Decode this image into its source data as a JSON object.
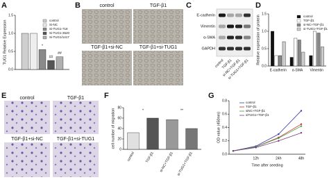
{
  "panel_letters": [
    "A",
    "B",
    "C",
    "D",
    "E",
    "F",
    "G"
  ],
  "micrographs": {
    "B": [
      "control",
      "TGF-β1",
      "TGF-β1+si-NC",
      "TGF-β1+si-TUG1"
    ],
    "E": [
      "control",
      "TGF-β1",
      "TGF-β1+si-NC",
      "TGF-β1+si-TUG1"
    ]
  },
  "western_blot": {
    "proteins": [
      "E-cadherin",
      "Vimentin",
      "α-SMA",
      "GAPDH"
    ],
    "lanes": [
      "control",
      "TGF-β1",
      "si-NC+TGF-β1",
      "si-TUG1+TGF-β1"
    ]
  },
  "chart_data": [
    {
      "type": "bar",
      "y_label": "TUG1 Relative Expression",
      "categories": [
        null
      ],
      "series": [
        {
          "name": "control",
          "color": "#cfcfcf",
          "values": [
            1.0
          ]
        },
        {
          "name": "Si-NC",
          "color": "#eeeeee",
          "values": [
            1.0
          ]
        },
        {
          "name": "Si-TUG1-718",
          "color": "#8a8a8a",
          "values": [
            0.55
          ]
        },
        {
          "name": "Si-TUG1-3520",
          "color": "#555555",
          "values": [
            0.25
          ]
        },
        {
          "name": "Si-TUG1/1417",
          "color": "#b0b0b0",
          "values": [
            0.35
          ]
        }
      ],
      "annotations": [
        "*",
        "##",
        "##"
      ],
      "ylim": [
        0,
        1.5
      ],
      "yticks": [
        {
          "value": 0,
          "label": "0.0"
        },
        0.5,
        {
          "value": 1,
          "label": "1.0"
        },
        1.5
      ]
    },
    {
      "type": "bar",
      "y_label": "Relative expression of protein",
      "categories": [
        "E-cadherin",
        "α-SMA",
        "Vimentin"
      ],
      "series": [
        {
          "name": "control",
          "color": "#111111",
          "values": [
            1.0,
            0.25,
            0.3
          ]
        },
        {
          "name": "TGF-β1",
          "color": "#ffffff",
          "values": [
            0.3,
            0.8,
            1.0
          ]
        },
        {
          "name": "si-NC+TGF-β1",
          "color": "#888888",
          "values": [
            0.3,
            0.75,
            0.95
          ]
        },
        {
          "name": "si-TUG1+TGF-β1",
          "color": "#cccccc",
          "values": [
            0.7,
            0.4,
            0.55
          ]
        }
      ],
      "ylim": [
        0,
        1.5
      ],
      "yticks": [
        {
          "value": 0,
          "label": "0.0"
        },
        0.5,
        {
          "value": 1,
          "label": "1.0"
        },
        1.5
      ]
    },
    {
      "type": "bar",
      "y_label": "cell number of migration",
      "categories": [
        "control",
        "TGF-β1",
        "si-NC+TGF-β1",
        "si-TUG1+TGF-β1"
      ],
      "values": [
        32,
        60,
        57,
        40
      ],
      "colors": [
        "#e0e0e0",
        "#555555",
        "#999999",
        "#777777"
      ],
      "annotations": [
        "*",
        "**"
      ],
      "ylim": [
        0,
        80
      ],
      "yticks": [
        0,
        20,
        40,
        60,
        80
      ]
    },
    {
      "type": "line",
      "y_label": "OD value (450nm)",
      "x_label": "Time after seeding",
      "categories": [
        null,
        "12h",
        "24h",
        "48h"
      ],
      "series": [
        {
          "name": "control",
          "color": "#3a3aa8",
          "values": [
            0.05,
            0.12,
            0.3,
            0.65
          ]
        },
        {
          "name": "TGF-β1",
          "color": "#c0302b",
          "values": [
            0.05,
            0.11,
            0.25,
            0.45
          ]
        },
        {
          "name": "siNC+TGF-β1",
          "color": "#4a9a3a",
          "values": [
            0.05,
            0.11,
            0.24,
            0.42
          ]
        },
        {
          "name": "siTUG1+TGF-β1",
          "color": "#7a3a8a",
          "values": [
            0.05,
            0.1,
            0.2,
            0.32
          ]
        }
      ],
      "ylim": [
        0,
        0.8
      ],
      "yticks": [
        {
          "value": 0,
          "label": "0.0"
        },
        0.2,
        0.4,
        0.6,
        0.8
      ]
    }
  ]
}
